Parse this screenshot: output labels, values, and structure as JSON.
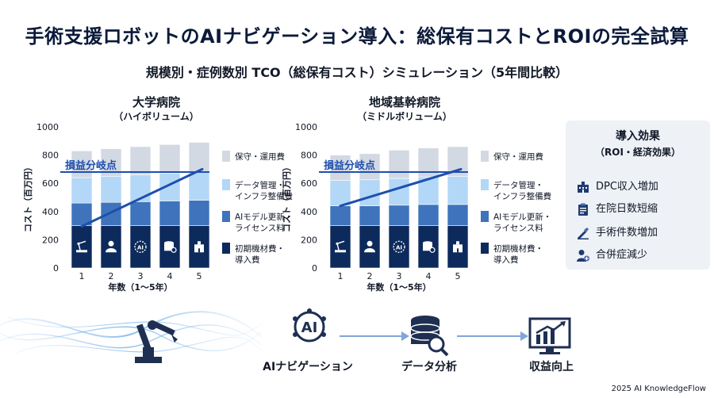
{
  "page": {
    "title": "手術支援ロボットのAIナビゲーション導入：総保有コストとROIの完全試算",
    "subtitle": "規模別・症例数別 TCO（総保有コスト）シミュレーション（5年間比較）",
    "footer": "2025 AI KnowledgeFlow"
  },
  "chart_data": [
    {
      "type": "bar",
      "stacked": true,
      "title": "大学病院",
      "subtitle": "（ハイボリューム）",
      "xlabel": "年数（1〜5年）",
      "ylabel": "コスト（百万円）",
      "ylim": [
        0,
        1000
      ],
      "yticks": [
        0,
        200,
        400,
        600,
        800,
        1000
      ],
      "categories": [
        "1",
        "2",
        "3",
        "4",
        "5"
      ],
      "series": [
        {
          "name": "初期機材費・導入費",
          "values": [
            300,
            300,
            300,
            300,
            300
          ]
        },
        {
          "name": "AIモデル更新・ライセンス料",
          "values": [
            160,
            165,
            170,
            175,
            180
          ]
        },
        {
          "name": "データ管理・インフラ整備費",
          "values": [
            180,
            185,
            190,
            195,
            200
          ]
        },
        {
          "name": "保守・運用費",
          "values": [
            190,
            195,
            200,
            205,
            210
          ]
        }
      ],
      "breakeven": {
        "label": "損益分岐点",
        "value": 680
      },
      "roi_line": {
        "start": 295,
        "end": 700
      },
      "bar_icons": [
        "robot",
        "doctor",
        "ai",
        "database",
        "hospital"
      ]
    },
    {
      "type": "bar",
      "stacked": true,
      "title": "地域基幹病院",
      "subtitle": "（ミドルボリューム）",
      "xlabel": "年数（1〜5年）",
      "ylabel": "コスト（百万円）",
      "ylim": [
        0,
        1000
      ],
      "yticks": [
        0,
        200,
        400,
        600,
        800,
        1000
      ],
      "categories": [
        "1",
        "2",
        "3",
        "4",
        "5"
      ],
      "series": [
        {
          "name": "初期機材費・導入費",
          "values": [
            300,
            300,
            300,
            300,
            300
          ]
        },
        {
          "name": "AIモデル更新・ライセンス料",
          "values": [
            140,
            140,
            145,
            150,
            150
          ]
        },
        {
          "name": "データ管理・インフラ整備費",
          "values": [
            180,
            185,
            190,
            195,
            200
          ]
        },
        {
          "name": "保守・運用費",
          "values": [
            180,
            185,
            200,
            205,
            210
          ]
        }
      ],
      "breakeven": {
        "label": "損益分岐点",
        "value": 680
      },
      "roi_line": {
        "start": 440,
        "end": 700
      },
      "bar_icons": [
        "robot",
        "doctor",
        "ai",
        "database",
        "hospital"
      ]
    }
  ],
  "legend": {
    "items": [
      {
        "label_line1": "保守・運用費",
        "label_line2": "",
        "color": "#d3d9e3"
      },
      {
        "label_line1": "データ管理・",
        "label_line2": "インフラ整備費",
        "color": "#b3d7f7"
      },
      {
        "label_line1": "AIモデル更新・",
        "label_line2": "ライセンス料",
        "color": "#3f74bc"
      },
      {
        "label_line1": "初期機材費・",
        "label_line2": "導入費",
        "color": "#0d2a5c"
      }
    ]
  },
  "colors": {
    "maintenance": "#d3d9e3",
    "data_infra": "#b3d7f7",
    "ai_license": "#3f74bc",
    "initial": "#0d2a5c",
    "line": "#1f4fae",
    "breakeven_text": "#1f4fae"
  },
  "effects": {
    "title": "導入効果",
    "subtitle": "（ROI・経済効果）",
    "items": [
      {
        "label": "DPC収入増加",
        "icon": "hospital-icon"
      },
      {
        "label": "在院日数短縮",
        "icon": "clipboard-icon"
      },
      {
        "label": "手術件数増加",
        "icon": "surgery-icon"
      },
      {
        "label": "合併症減少",
        "icon": "patient-plus-icon"
      }
    ]
  },
  "flow": {
    "steps": [
      {
        "label": "",
        "icon": "robot-arm-icon"
      },
      {
        "label": "AIナビゲーション",
        "icon": "ai-brain-icon"
      },
      {
        "label": "データ分析",
        "icon": "database-search-icon"
      },
      {
        "label": "収益向上",
        "icon": "growth-chart-icon"
      }
    ]
  }
}
